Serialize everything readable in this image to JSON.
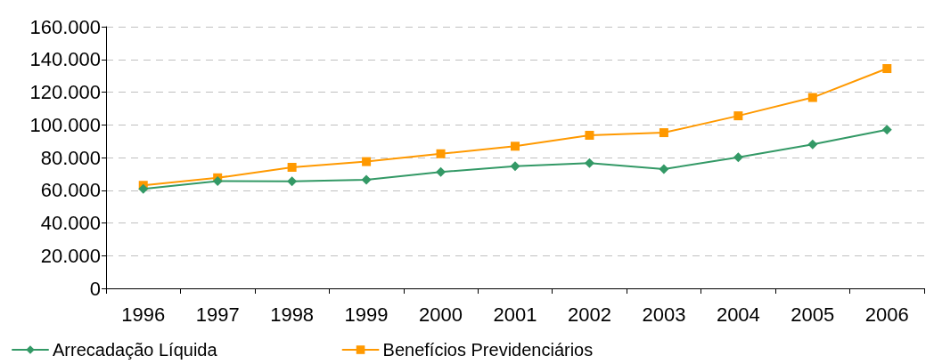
{
  "chart_data": {
    "type": "line",
    "categories": [
      "1996",
      "1997",
      "1998",
      "1999",
      "2000",
      "2001",
      "2002",
      "2003",
      "2004",
      "2005",
      "2006"
    ],
    "series": [
      {
        "name": "Arrecadação Líquida",
        "color": "#339966",
        "marker": "diamond",
        "values": [
          60800,
          65600,
          65500,
          66400,
          71200,
          74700,
          76600,
          72900,
          80100,
          88000,
          97000
        ]
      },
      {
        "name": "Benefícios Previdenciários",
        "color": "#ff9900",
        "marker": "square",
        "values": [
          63000,
          67600,
          74000,
          77500,
          82300,
          86900,
          93600,
          95200,
          105500,
          116700,
          134400
        ]
      }
    ],
    "ylim": [
      0,
      160000
    ],
    "yticks": [
      {
        "value": 0,
        "label": "0"
      },
      {
        "value": 20000,
        "label": "20.000"
      },
      {
        "value": 40000,
        "label": "40.000"
      },
      {
        "value": 60000,
        "label": "60.000"
      },
      {
        "value": 80000,
        "label": "80.000"
      },
      {
        "value": 100000,
        "label": "100.000"
      },
      {
        "value": 120000,
        "label": "120.000"
      },
      {
        "value": 140000,
        "label": "140.000"
      },
      {
        "value": 160000,
        "label": "160.000"
      }
    ],
    "grid": "y",
    "legend": "bottom left",
    "line_style": "solid"
  }
}
